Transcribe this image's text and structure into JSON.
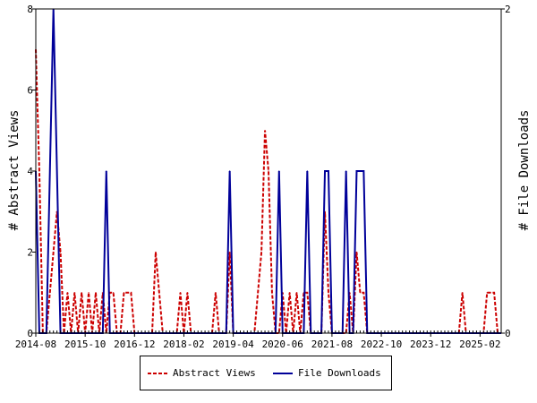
{
  "chart_data": {
    "type": "line",
    "title": "",
    "xlabel": "",
    "ylabel": "# Abstract Views",
    "y2label": "# File Downloads",
    "x_tick_labels": [
      "2014-08",
      "2015-10",
      "2016-12",
      "2018-02",
      "2019-04",
      "2020-06",
      "2021-08",
      "2022-10",
      "2023-12",
      "2025-02"
    ],
    "x_start": "2014-08",
    "x_end": "2025-08",
    "ylim": [
      0,
      8
    ],
    "y_ticks": [
      0,
      2,
      4,
      6,
      8
    ],
    "y2lim": [
      0,
      2
    ],
    "y2_ticks": [
      0,
      2
    ],
    "grid": false,
    "legend_position": "bottom",
    "series": [
      {
        "name": "Abstract Views",
        "axis": "left",
        "color": "#cc0000",
        "style": "dashed",
        "points": [
          [
            "2014-08",
            7
          ],
          [
            "2014-09",
            4
          ],
          [
            "2014-10",
            0
          ],
          [
            "2014-11",
            0
          ],
          [
            "2014-12",
            1
          ],
          [
            "2015-01",
            2
          ],
          [
            "2015-02",
            3
          ],
          [
            "2015-03",
            2
          ],
          [
            "2015-04",
            0
          ],
          [
            "2015-05",
            1
          ],
          [
            "2015-06",
            0
          ],
          [
            "2015-07",
            1
          ],
          [
            "2015-08",
            0
          ],
          [
            "2015-09",
            1
          ],
          [
            "2015-10",
            0
          ],
          [
            "2015-11",
            1
          ],
          [
            "2015-12",
            0
          ],
          [
            "2016-01",
            1
          ],
          [
            "2016-02",
            0
          ],
          [
            "2016-03",
            1
          ],
          [
            "2016-04",
            0
          ],
          [
            "2016-05",
            1
          ],
          [
            "2016-06",
            1
          ],
          [
            "2016-07",
            0
          ],
          [
            "2016-08",
            0
          ],
          [
            "2016-09",
            1
          ],
          [
            "2016-10",
            1
          ],
          [
            "2016-11",
            1
          ],
          [
            "2016-12",
            0
          ],
          [
            "2017-01",
            0
          ],
          [
            "2017-02",
            0
          ],
          [
            "2017-03",
            0
          ],
          [
            "2017-04",
            0
          ],
          [
            "2017-05",
            0
          ],
          [
            "2017-06",
            2
          ],
          [
            "2017-07",
            1
          ],
          [
            "2017-08",
            0
          ],
          [
            "2017-09",
            0
          ],
          [
            "2017-10",
            0
          ],
          [
            "2017-11",
            0
          ],
          [
            "2017-12",
            0
          ],
          [
            "2018-01",
            1
          ],
          [
            "2018-02",
            0
          ],
          [
            "2018-03",
            1
          ],
          [
            "2018-04",
            0
          ],
          [
            "2018-05",
            0
          ],
          [
            "2018-06",
            0
          ],
          [
            "2018-07",
            0
          ],
          [
            "2018-08",
            0
          ],
          [
            "2018-09",
            0
          ],
          [
            "2018-10",
            0
          ],
          [
            "2018-11",
            1
          ],
          [
            "2018-12",
            0
          ],
          [
            "2019-01",
            0
          ],
          [
            "2019-02",
            0
          ],
          [
            "2019-03",
            2
          ],
          [
            "2019-04",
            0
          ],
          [
            "2019-05",
            0
          ],
          [
            "2019-06",
            0
          ],
          [
            "2019-07",
            0
          ],
          [
            "2019-08",
            0
          ],
          [
            "2019-09",
            0
          ],
          [
            "2019-10",
            0
          ],
          [
            "2019-11",
            1
          ],
          [
            "2019-12",
            2
          ],
          [
            "2020-01",
            5
          ],
          [
            "2020-02",
            4
          ],
          [
            "2020-03",
            1
          ],
          [
            "2020-04",
            0
          ],
          [
            "2020-05",
            0
          ],
          [
            "2020-06",
            1
          ],
          [
            "2020-07",
            0
          ],
          [
            "2020-08",
            1
          ],
          [
            "2020-09",
            0
          ],
          [
            "2020-10",
            1
          ],
          [
            "2020-11",
            0
          ],
          [
            "2020-12",
            1
          ],
          [
            "2021-01",
            1
          ],
          [
            "2021-02",
            0
          ],
          [
            "2021-03",
            0
          ],
          [
            "2021-04",
            0
          ],
          [
            "2021-05",
            0
          ],
          [
            "2021-06",
            3
          ],
          [
            "2021-07",
            1
          ],
          [
            "2021-08",
            0
          ],
          [
            "2021-09",
            0
          ],
          [
            "2021-10",
            0
          ],
          [
            "2021-11",
            0
          ],
          [
            "2021-12",
            0
          ],
          [
            "2022-01",
            1
          ],
          [
            "2022-02",
            0
          ],
          [
            "2022-03",
            2
          ],
          [
            "2022-04",
            1
          ],
          [
            "2022-05",
            1
          ],
          [
            "2022-06",
            0
          ],
          [
            "2022-07",
            0
          ],
          [
            "2022-08",
            0
          ],
          [
            "2022-09",
            0
          ],
          [
            "2022-10",
            0
          ],
          [
            "2022-11",
            0
          ],
          [
            "2022-12",
            0
          ],
          [
            "2023-01",
            0
          ],
          [
            "2023-02",
            0
          ],
          [
            "2023-03",
            0
          ],
          [
            "2023-04",
            0
          ],
          [
            "2023-05",
            0
          ],
          [
            "2023-06",
            0
          ],
          [
            "2023-07",
            0
          ],
          [
            "2023-08",
            0
          ],
          [
            "2023-09",
            0
          ],
          [
            "2023-10",
            0
          ],
          [
            "2023-11",
            0
          ],
          [
            "2023-12",
            0
          ],
          [
            "2024-01",
            0
          ],
          [
            "2024-02",
            0
          ],
          [
            "2024-03",
            0
          ],
          [
            "2024-04",
            0
          ],
          [
            "2024-05",
            0
          ],
          [
            "2024-06",
            0
          ],
          [
            "2024-07",
            0
          ],
          [
            "2024-08",
            0
          ],
          [
            "2024-09",
            1
          ],
          [
            "2024-10",
            0
          ],
          [
            "2024-11",
            0
          ],
          [
            "2024-12",
            0
          ],
          [
            "2025-01",
            0
          ],
          [
            "2025-02",
            0
          ],
          [
            "2025-03",
            0
          ],
          [
            "2025-04",
            1
          ],
          [
            "2025-05",
            1
          ],
          [
            "2025-06",
            1
          ],
          [
            "2025-07",
            0
          ],
          [
            "2025-08",
            0
          ]
        ]
      },
      {
        "name": "File Downloads",
        "axis": "right",
        "color": "#000099",
        "style": "solid",
        "points": [
          [
            "2014-08",
            1
          ],
          [
            "2014-09",
            0
          ],
          [
            "2014-10",
            0
          ],
          [
            "2014-11",
            0
          ],
          [
            "2014-12",
            1
          ],
          [
            "2015-01",
            2
          ],
          [
            "2015-02",
            1
          ],
          [
            "2015-03",
            0
          ],
          [
            "2015-04",
            0
          ],
          [
            "2015-05",
            0
          ],
          [
            "2015-06",
            0
          ],
          [
            "2015-07",
            0
          ],
          [
            "2015-08",
            0
          ],
          [
            "2015-09",
            0
          ],
          [
            "2015-10",
            0
          ],
          [
            "2015-11",
            0
          ],
          [
            "2015-12",
            0
          ],
          [
            "2016-01",
            0
          ],
          [
            "2016-02",
            0
          ],
          [
            "2016-03",
            0
          ],
          [
            "2016-04",
            1
          ],
          [
            "2016-05",
            0
          ],
          [
            "2016-06",
            0
          ],
          [
            "2016-07",
            0
          ],
          [
            "2016-08",
            0
          ],
          [
            "2016-09",
            0
          ],
          [
            "2016-10",
            0
          ],
          [
            "2016-11",
            0
          ],
          [
            "2016-12",
            0
          ],
          [
            "2017-01",
            0
          ],
          [
            "2017-02",
            0
          ],
          [
            "2017-03",
            0
          ],
          [
            "2017-04",
            0
          ],
          [
            "2017-05",
            0
          ],
          [
            "2017-06",
            0
          ],
          [
            "2017-07",
            0
          ],
          [
            "2017-08",
            0
          ],
          [
            "2017-09",
            0
          ],
          [
            "2017-10",
            0
          ],
          [
            "2017-11",
            0
          ],
          [
            "2017-12",
            0
          ],
          [
            "2018-01",
            0
          ],
          [
            "2018-02",
            0
          ],
          [
            "2018-03",
            0
          ],
          [
            "2018-04",
            0
          ],
          [
            "2018-05",
            0
          ],
          [
            "2018-06",
            0
          ],
          [
            "2018-07",
            0
          ],
          [
            "2018-08",
            0
          ],
          [
            "2018-09",
            0
          ],
          [
            "2018-10",
            0
          ],
          [
            "2018-11",
            0
          ],
          [
            "2018-12",
            0
          ],
          [
            "2019-01",
            0
          ],
          [
            "2019-02",
            0
          ],
          [
            "2019-03",
            1
          ],
          [
            "2019-04",
            0
          ],
          [
            "2019-05",
            0
          ],
          [
            "2019-06",
            0
          ],
          [
            "2019-07",
            0
          ],
          [
            "2019-08",
            0
          ],
          [
            "2019-09",
            0
          ],
          [
            "2019-10",
            0
          ],
          [
            "2019-11",
            0
          ],
          [
            "2019-12",
            0
          ],
          [
            "2020-01",
            0
          ],
          [
            "2020-02",
            0
          ],
          [
            "2020-03",
            0
          ],
          [
            "2020-04",
            0
          ],
          [
            "2020-05",
            1
          ],
          [
            "2020-06",
            0
          ],
          [
            "2020-07",
            0
          ],
          [
            "2020-08",
            0
          ],
          [
            "2020-09",
            0
          ],
          [
            "2020-10",
            0
          ],
          [
            "2020-11",
            0
          ],
          [
            "2020-12",
            0
          ],
          [
            "2021-01",
            1
          ],
          [
            "2021-02",
            0
          ],
          [
            "2021-03",
            0
          ],
          [
            "2021-04",
            0
          ],
          [
            "2021-05",
            0
          ],
          [
            "2021-06",
            1
          ],
          [
            "2021-07",
            1
          ],
          [
            "2021-08",
            0
          ],
          [
            "2021-09",
            0
          ],
          [
            "2021-10",
            0
          ],
          [
            "2021-11",
            0
          ],
          [
            "2021-12",
            1
          ],
          [
            "2022-01",
            0
          ],
          [
            "2022-02",
            0
          ],
          [
            "2022-03",
            1
          ],
          [
            "2022-04",
            1
          ],
          [
            "2022-05",
            1
          ],
          [
            "2022-06",
            0
          ],
          [
            "2022-07",
            0
          ],
          [
            "2022-08",
            0
          ],
          [
            "2022-09",
            0
          ],
          [
            "2022-10",
            0
          ],
          [
            "2022-11",
            0
          ],
          [
            "2022-12",
            0
          ],
          [
            "2023-01",
            0
          ],
          [
            "2023-02",
            0
          ],
          [
            "2023-03",
            0
          ],
          [
            "2023-04",
            0
          ],
          [
            "2023-05",
            0
          ],
          [
            "2023-06",
            0
          ],
          [
            "2023-07",
            0
          ],
          [
            "2023-08",
            0
          ],
          [
            "2023-09",
            0
          ],
          [
            "2023-10",
            0
          ],
          [
            "2023-11",
            0
          ],
          [
            "2023-12",
            0
          ],
          [
            "2024-01",
            0
          ],
          [
            "2024-02",
            0
          ],
          [
            "2024-03",
            0
          ],
          [
            "2024-04",
            0
          ],
          [
            "2024-05",
            0
          ],
          [
            "2024-06",
            0
          ],
          [
            "2024-07",
            0
          ],
          [
            "2024-08",
            0
          ],
          [
            "2024-09",
            0
          ],
          [
            "2024-10",
            0
          ],
          [
            "2024-11",
            0
          ],
          [
            "2024-12",
            0
          ],
          [
            "2025-01",
            0
          ],
          [
            "2025-02",
            0
          ],
          [
            "2025-03",
            0
          ],
          [
            "2025-04",
            0
          ],
          [
            "2025-05",
            0
          ],
          [
            "2025-06",
            0
          ],
          [
            "2025-07",
            0
          ],
          [
            "2025-08",
            0
          ]
        ]
      }
    ]
  }
}
